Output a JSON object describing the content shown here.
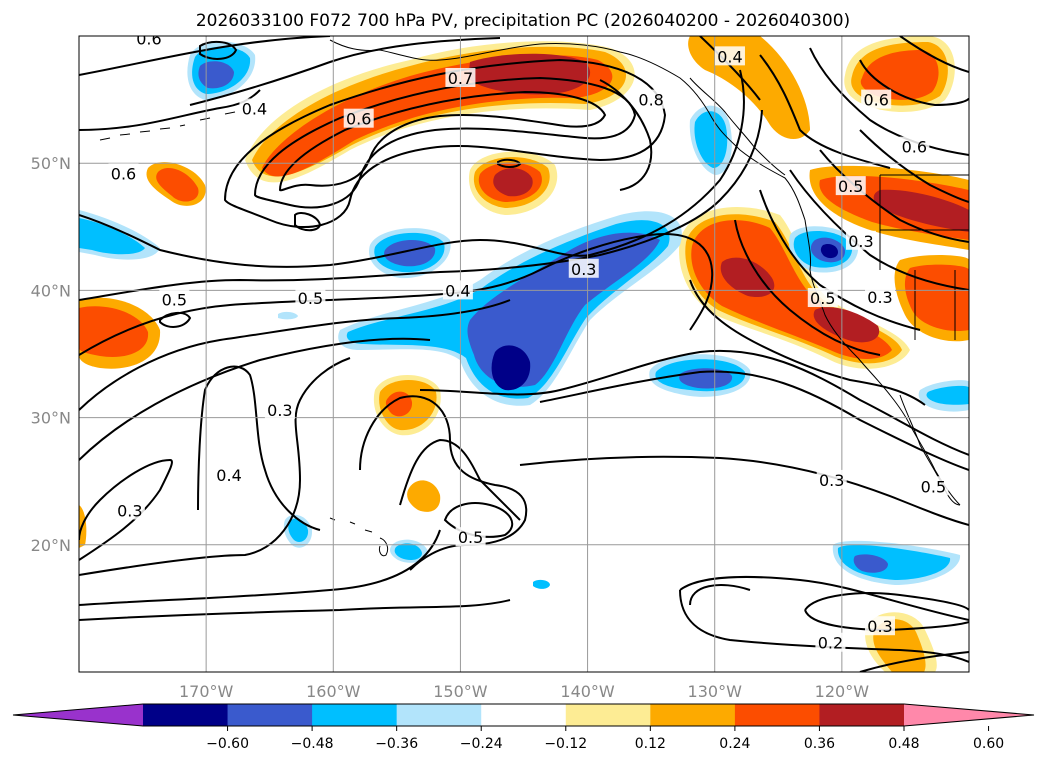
{
  "title": "2026033100 F072 700 hPa PV, precipitation PC (2026040200 - 2026040300)",
  "map": {
    "lon_range": [
      -180,
      -110
    ],
    "lat_range": [
      10,
      60
    ],
    "lon_ticks": [
      {
        "lon": -170,
        "label": "170°W"
      },
      {
        "lon": -160,
        "label": "160°W"
      },
      {
        "lon": -150,
        "label": "150°W"
      },
      {
        "lon": -140,
        "label": "140°W"
      },
      {
        "lon": -130,
        "label": "130°W"
      },
      {
        "lon": -120,
        "label": "120°W"
      }
    ],
    "lat_ticks": [
      {
        "lat": 50,
        "label": "50°N"
      },
      {
        "lat": 40,
        "label": "40°N"
      },
      {
        "lat": 30,
        "label": "30°N"
      },
      {
        "lat": 20,
        "label": "20°N"
      }
    ],
    "grid": true,
    "field_colors": {
      "pos_1": "#fdec94",
      "pos_2": "#fdaa00",
      "pos_3": "#fc4d00",
      "pos_4": "#b21e22",
      "neg_1": "#b2e4fb",
      "neg_2": "#00bfff",
      "neg_3": "#3a5acd",
      "neg_4": "#000088"
    }
  },
  "contour_labels": [
    {
      "text": "0.6",
      "lon": -174.5,
      "lat": 59.8
    },
    {
      "text": "0.4",
      "lon": -166.2,
      "lat": 54.3
    },
    {
      "text": "0.6",
      "lon": -158.0,
      "lat": 53.5
    },
    {
      "text": "0.7",
      "lon": -150.0,
      "lat": 56.7
    },
    {
      "text": "0.8",
      "lon": -135.0,
      "lat": 55.0
    },
    {
      "text": "0.6",
      "lon": -176.5,
      "lat": 49.2
    },
    {
      "text": "0.4",
      "lon": -128.8,
      "lat": 58.4
    },
    {
      "text": "0.6",
      "lon": -117.3,
      "lat": 55.0
    },
    {
      "text": "0.6",
      "lon": -114.3,
      "lat": 51.3
    },
    {
      "text": "0.5",
      "lon": -119.3,
      "lat": 48.2
    },
    {
      "text": "0.3",
      "lon": -118.5,
      "lat": 43.9
    },
    {
      "text": "0.5",
      "lon": -172.5,
      "lat": 39.3
    },
    {
      "text": "0.5",
      "lon": -161.8,
      "lat": 39.4
    },
    {
      "text": "0.4",
      "lon": -150.2,
      "lat": 40.0
    },
    {
      "text": "0.3",
      "lon": -140.3,
      "lat": 41.7
    },
    {
      "text": "0.5",
      "lon": -121.5,
      "lat": 39.4
    },
    {
      "text": "0.3",
      "lon": -117.0,
      "lat": 39.5
    },
    {
      "text": "0.3",
      "lon": -164.2,
      "lat": 30.6
    },
    {
      "text": "0.4",
      "lon": -168.2,
      "lat": 25.5
    },
    {
      "text": "0.3",
      "lon": -176.0,
      "lat": 22.7
    },
    {
      "text": "0.5",
      "lon": -149.2,
      "lat": 20.6
    },
    {
      "text": "0.3",
      "lon": -120.8,
      "lat": 25.1
    },
    {
      "text": "0.5",
      "lon": -112.8,
      "lat": 24.6
    },
    {
      "text": "0.2",
      "lon": -120.9,
      "lat": 12.3
    },
    {
      "text": "0.3",
      "lon": -117.0,
      "lat": 13.6
    }
  ],
  "colorbar": {
    "ticks": [
      "−0.60",
      "−0.48",
      "−0.36",
      "−0.24",
      "−0.12",
      "0.12",
      "0.24",
      "0.36",
      "0.48",
      "0.60"
    ],
    "colors": [
      "#9932cc",
      "#000088",
      "#3a5acd",
      "#00bfff",
      "#b2e4fb",
      "#ffffff",
      "#fdec94",
      "#fdaa00",
      "#fc4d00",
      "#b21e22",
      "#ff88aa"
    ]
  }
}
